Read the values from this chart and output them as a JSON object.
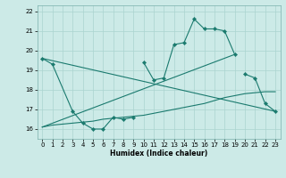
{
  "xlabel": "Humidex (Indice chaleur)",
  "bg_color": "#cceae7",
  "grid_color": "#aad4d0",
  "line_color": "#1a7a6e",
  "xlim": [
    -0.5,
    23.5
  ],
  "ylim": [
    15.5,
    22.3
  ],
  "xticks": [
    0,
    1,
    2,
    3,
    4,
    5,
    6,
    7,
    8,
    9,
    10,
    11,
    12,
    13,
    14,
    15,
    16,
    17,
    18,
    19,
    20,
    21,
    22,
    23
  ],
  "yticks": [
    16,
    17,
    18,
    19,
    20,
    21,
    22
  ],
  "series": [
    {
      "x": [
        0,
        1,
        3,
        4,
        5,
        6,
        7,
        8,
        9
      ],
      "y": [
        19.6,
        19.3,
        16.9,
        16.3,
        16.0,
        16.0,
        16.6,
        16.5,
        16.6
      ],
      "has_markers": true
    },
    {
      "x": [
        10,
        11,
        12,
        13,
        14,
        15,
        16,
        17,
        18,
        19
      ],
      "y": [
        19.4,
        18.5,
        18.6,
        20.3,
        20.4,
        21.6,
        21.1,
        21.1,
        21.0,
        19.8
      ],
      "has_markers": true
    },
    {
      "x": [
        20,
        21,
        22,
        23
      ],
      "y": [
        18.8,
        18.6,
        17.3,
        16.9
      ],
      "has_markers": true
    },
    {
      "x": [
        0,
        1,
        2,
        3,
        4,
        5,
        6,
        7,
        8,
        9,
        10,
        11,
        12,
        13,
        14,
        15,
        16,
        17,
        18,
        19,
        20,
        21,
        22,
        23
      ],
      "y": [
        16.1,
        16.2,
        16.25,
        16.3,
        16.35,
        16.4,
        16.5,
        16.55,
        16.6,
        16.65,
        16.7,
        16.8,
        16.9,
        17.0,
        17.1,
        17.2,
        17.3,
        17.45,
        17.6,
        17.7,
        17.8,
        17.85,
        17.9,
        17.9
      ],
      "has_markers": false
    },
    {
      "x": [
        0,
        23
      ],
      "y": [
        19.6,
        16.9
      ],
      "has_markers": false
    },
    {
      "x": [
        0,
        19
      ],
      "y": [
        16.1,
        19.8
      ],
      "has_markers": false
    }
  ]
}
